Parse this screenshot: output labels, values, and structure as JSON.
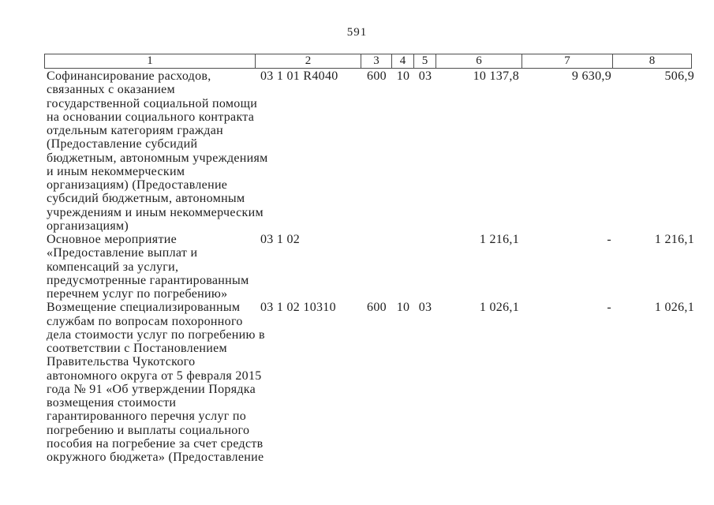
{
  "page": {
    "number": "591"
  },
  "table": {
    "headers": [
      "1",
      "2",
      "3",
      "4",
      "5",
      "6",
      "7",
      "8"
    ],
    "rows": [
      {
        "name": "Софинансирование расходов,\nсвязанных с оказанием\nгосударственной социальной помощи\nна основании социального контракта\nотдельным категориям граждан\n(Предоставление субсидий\nбюджетным, автономным учреждениям\nи иным некоммерческим\nорганизациям) (Предоставление\nсубсидий бюджетным, автономным\nучреждениям и иным некоммерческим\nорганизациям)",
        "code": "03 1 01 R4040",
        "col3": "600",
        "col4": "10",
        "col5": "03",
        "col6": "10 137,8",
        "col7": "9 630,9",
        "col8": "506,9"
      },
      {
        "name": "Основное мероприятие\n«Предоставление выплат и\nкомпенсаций за услуги,\nпредусмотренные гарантированным\nперечнем услуг по погребению»",
        "code": "03 1 02",
        "col3": "",
        "col4": "",
        "col5": "",
        "col6": "1 216,1",
        "col7": "-",
        "col8": "1 216,1"
      },
      {
        "name": "Возмещение специализированным\nслужбам по вопросам похоронного\nдела стоимости услуг по погребению в\nсоответствии с Постановлением\nПравительства Чукотского\nавтономного округа от 5 февраля 2015\nгода № 91 «Об утверждении Порядка\nвозмещения стоимости\nгарантированного перечня услуг по\nпогребению и выплаты социального\nпособия на погребение за счет средств\nокружного бюджета» (Предоставление",
        "code": "03 1 02 10310",
        "col3": "600",
        "col4": "10",
        "col5": "03",
        "col6": "1 026,1",
        "col7": "-",
        "col8": "1 026,1"
      }
    ]
  }
}
